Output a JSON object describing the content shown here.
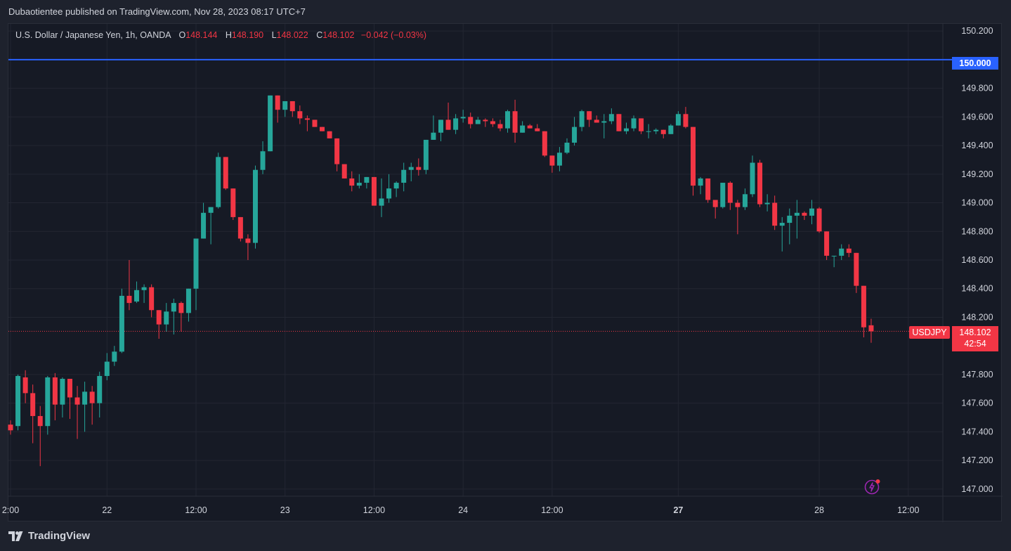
{
  "header": {
    "publisher_line": "Dubaotientee published on TradingView.com, Nov 28, 2023 08:17 UTC+7"
  },
  "legend": {
    "symbol": "U.S. Dollar / Japanese Yen, 1h, OANDA",
    "open_label": "O",
    "open": "148.144",
    "high_label": "H",
    "high": "148.190",
    "low_label": "L",
    "low": "148.022",
    "close_label": "C",
    "close": "148.102",
    "change": "−0.042 (−0.03%)"
  },
  "footer": {
    "brand": "TradingView",
    "logo_icon": "tradingview-logo-icon"
  },
  "colors": {
    "up": "#26a69a",
    "down": "#f23645",
    "level_line": "#2962ff",
    "background": "#161a25"
  },
  "chart_data": {
    "type": "candlestick",
    "ylim": [
      146.95,
      150.25
    ],
    "y_ticks": [
      "150.200",
      "149.800",
      "149.600",
      "149.400",
      "149.200",
      "149.000",
      "148.800",
      "148.600",
      "148.400",
      "148.200",
      "147.800",
      "147.600",
      "147.400",
      "147.200",
      "147.000"
    ],
    "x_ticks": [
      {
        "label": "2:00",
        "index": 0
      },
      {
        "label": "22",
        "index": 13
      },
      {
        "label": "12:00",
        "index": 25
      },
      {
        "label": "23",
        "index": 37
      },
      {
        "label": "12:00",
        "index": 49
      },
      {
        "label": "24",
        "index": 61
      },
      {
        "label": "12:00",
        "index": 73
      },
      {
        "label": "27",
        "index": 90,
        "bold": true
      },
      {
        "label": "28",
        "index": 109
      },
      {
        "label": "12:00",
        "index": 121
      }
    ],
    "horizontal_level": {
      "value": 150.0,
      "label": "150.000"
    },
    "last_price": {
      "symbol": "USDJPY",
      "value": 148.102,
      "label": "148.102",
      "countdown": "42:54"
    },
    "candles": [
      [
        147.45,
        147.41,
        147.48,
        147.38
      ],
      [
        147.44,
        147.79,
        147.8,
        147.41
      ],
      [
        147.78,
        147.67,
        147.83,
        147.6
      ],
      [
        147.67,
        147.51,
        147.73,
        147.32
      ],
      [
        147.51,
        147.44,
        147.58,
        147.16
      ],
      [
        147.44,
        147.78,
        147.79,
        147.38
      ],
      [
        147.78,
        147.59,
        147.81,
        147.48
      ],
      [
        147.59,
        147.77,
        147.78,
        147.5
      ],
      [
        147.77,
        147.64,
        147.74,
        147.49
      ],
      [
        147.64,
        147.59,
        147.72,
        147.35
      ],
      [
        147.59,
        147.68,
        147.75,
        147.4
      ],
      [
        147.68,
        147.6,
        147.72,
        147.45
      ],
      [
        147.6,
        147.79,
        147.82,
        147.5
      ],
      [
        147.79,
        147.89,
        147.95,
        147.76
      ],
      [
        147.89,
        147.96,
        148.0,
        147.86
      ],
      [
        147.96,
        148.35,
        148.4,
        147.95
      ],
      [
        148.35,
        148.3,
        148.6,
        148.25
      ],
      [
        148.31,
        148.39,
        148.45,
        148.3
      ],
      [
        148.39,
        148.41,
        148.43,
        148.3
      ],
      [
        148.41,
        148.25,
        148.43,
        148.2
      ],
      [
        148.25,
        148.15,
        148.25,
        148.05
      ],
      [
        148.15,
        148.24,
        148.3,
        148.1
      ],
      [
        148.24,
        148.3,
        148.33,
        148.08
      ],
      [
        148.3,
        148.23,
        148.31,
        148.1
      ],
      [
        148.23,
        148.4,
        148.38,
        148.17
      ],
      [
        148.4,
        148.75,
        148.75,
        148.25
      ],
      [
        148.75,
        148.93,
        149.0,
        148.81
      ],
      [
        148.93,
        148.97,
        148.93,
        148.71
      ],
      [
        148.97,
        149.32,
        149.35,
        148.96
      ],
      [
        149.32,
        149.1,
        149.3,
        149.09
      ],
      [
        149.1,
        148.9,
        149.1,
        148.88
      ],
      [
        148.9,
        148.75,
        148.85,
        148.73
      ],
      [
        148.75,
        148.72,
        148.78,
        148.6
      ],
      [
        148.72,
        149.23,
        149.26,
        148.68
      ],
      [
        149.23,
        149.36,
        149.43,
        149.2
      ],
      [
        149.36,
        149.75,
        149.68,
        149.38
      ],
      [
        149.75,
        149.65,
        149.75,
        149.56
      ],
      [
        149.65,
        149.71,
        149.7,
        149.6
      ],
      [
        149.71,
        149.64,
        149.7,
        149.6
      ],
      [
        149.64,
        149.59,
        149.68,
        149.55
      ],
      [
        149.59,
        149.58,
        149.61,
        149.5
      ],
      [
        149.58,
        149.53,
        149.57,
        149.53
      ],
      [
        149.53,
        149.5,
        149.51,
        149.5
      ],
      [
        149.5,
        149.45,
        149.48,
        149.45
      ],
      [
        149.45,
        149.27,
        149.43,
        149.22
      ],
      [
        149.27,
        149.17,
        149.27,
        149.2
      ],
      [
        149.17,
        149.12,
        149.22,
        149.08
      ],
      [
        149.12,
        149.14,
        149.2,
        149.1
      ],
      [
        149.14,
        149.18,
        149.18,
        149.1
      ],
      [
        149.18,
        148.98,
        149.17,
        149.04
      ],
      [
        148.98,
        149.03,
        149.17,
        148.9
      ],
      [
        149.03,
        149.1,
        149.2,
        149.0
      ],
      [
        149.1,
        149.14,
        149.15,
        149.04
      ],
      [
        149.14,
        149.23,
        149.28,
        149.08
      ],
      [
        149.23,
        149.25,
        149.28,
        149.15
      ],
      [
        149.25,
        149.23,
        149.31,
        149.19
      ],
      [
        149.23,
        149.44,
        149.43,
        149.2
      ],
      [
        149.44,
        149.49,
        149.61,
        149.45
      ],
      [
        149.49,
        149.58,
        149.58,
        149.43
      ],
      [
        149.58,
        149.51,
        149.7,
        149.51
      ],
      [
        149.51,
        149.59,
        149.62,
        149.48
      ],
      [
        149.59,
        149.6,
        149.65,
        149.56
      ],
      [
        149.6,
        149.55,
        149.63,
        149.52
      ],
      [
        149.55,
        149.58,
        149.6,
        149.55
      ],
      [
        149.58,
        149.57,
        149.59,
        149.53
      ],
      [
        149.57,
        149.55,
        149.59,
        149.53
      ],
      [
        149.55,
        149.52,
        149.58,
        149.5
      ],
      [
        149.52,
        149.64,
        149.65,
        149.49
      ],
      [
        149.64,
        149.49,
        149.72,
        149.42
      ],
      [
        149.49,
        149.54,
        149.57,
        149.5
      ],
      [
        149.54,
        149.52,
        149.55,
        149.53
      ],
      [
        149.52,
        149.5,
        149.55,
        149.52
      ],
      [
        149.5,
        149.33,
        149.49,
        149.32
      ],
      [
        149.33,
        149.26,
        149.3,
        149.21
      ],
      [
        149.26,
        149.35,
        149.39,
        149.22
      ],
      [
        149.35,
        149.42,
        149.45,
        149.34
      ],
      [
        149.42,
        149.53,
        149.6,
        149.4
      ],
      [
        149.53,
        149.64,
        149.65,
        149.5
      ],
      [
        149.64,
        149.58,
        149.6,
        149.53
      ],
      [
        149.58,
        149.56,
        149.61,
        149.56
      ],
      [
        149.56,
        149.57,
        149.62,
        149.45
      ],
      [
        149.57,
        149.62,
        149.66,
        149.55
      ],
      [
        149.62,
        149.5,
        149.6,
        149.51
      ],
      [
        149.5,
        149.52,
        149.56,
        149.48
      ],
      [
        149.52,
        149.59,
        149.61,
        149.5
      ],
      [
        149.59,
        149.5,
        149.56,
        149.48
      ],
      [
        149.5,
        149.5,
        149.55,
        149.45
      ],
      [
        149.5,
        149.51,
        149.52,
        149.48
      ],
      [
        149.51,
        149.48,
        149.5,
        149.45
      ],
      [
        149.48,
        149.54,
        149.55,
        149.48
      ],
      [
        149.54,
        149.62,
        149.64,
        149.55
      ],
      [
        149.62,
        149.53,
        149.67,
        149.52
      ],
      [
        149.53,
        149.12,
        149.52,
        149.05
      ],
      [
        149.12,
        149.17,
        149.18,
        149.06
      ],
      [
        149.17,
        149.02,
        149.15,
        149.0
      ],
      [
        149.02,
        148.97,
        149.0,
        148.89
      ],
      [
        148.97,
        149.14,
        149.14,
        148.96
      ],
      [
        149.14,
        149.0,
        149.15,
        148.95
      ],
      [
        149.0,
        148.97,
        149.02,
        148.78
      ],
      [
        148.97,
        149.06,
        149.1,
        148.95
      ],
      [
        149.06,
        149.28,
        149.33,
        149.04
      ],
      [
        149.28,
        148.99,
        149.3,
        148.97
      ],
      [
        148.99,
        149.0,
        149.06,
        148.94
      ],
      [
        149.0,
        148.84,
        149.05,
        148.81
      ],
      [
        148.84,
        148.86,
        148.9,
        148.66
      ],
      [
        148.86,
        148.91,
        148.96,
        148.71
      ],
      [
        148.91,
        148.93,
        149.02,
        148.75
      ],
      [
        148.93,
        148.91,
        148.94,
        148.88
      ],
      [
        148.91,
        148.96,
        149.02,
        148.85
      ],
      [
        148.96,
        148.8,
        148.97,
        148.79
      ],
      [
        148.8,
        148.63,
        148.8,
        148.6
      ],
      [
        148.63,
        148.63,
        148.63,
        148.55
      ],
      [
        148.63,
        148.68,
        148.71,
        148.6
      ],
      [
        148.68,
        148.65,
        148.71,
        148.62
      ],
      [
        148.65,
        148.42,
        148.64,
        148.37
      ],
      [
        148.42,
        148.13,
        148.42,
        148.06
      ],
      [
        148.144,
        148.102,
        148.19,
        148.022
      ]
    ]
  }
}
